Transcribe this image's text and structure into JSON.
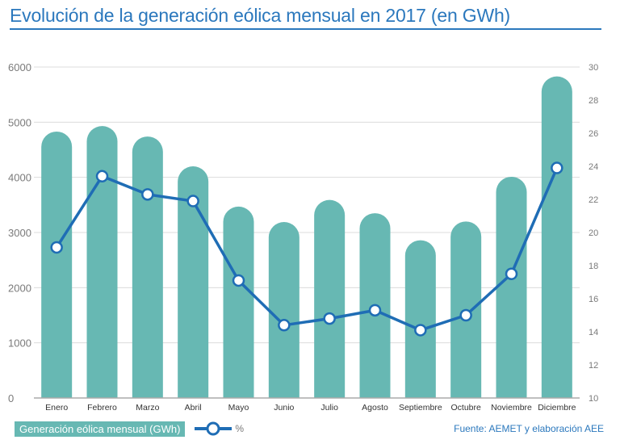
{
  "chart_data": {
    "type": "bar+line",
    "title": "Evolución de la generación eólica mensual en 2017 (en GWh)",
    "categories": [
      "Enero",
      "Febrero",
      "Marzo",
      "Abril",
      "Mayo",
      "Junio",
      "Julio",
      "Agosto",
      "Septiembre",
      "Octubre",
      "Noviembre",
      "Diciembre"
    ],
    "series": [
      {
        "name": "Generación eólica mensual (GWh)",
        "type": "bar",
        "axis": "left",
        "color": "#67b8b3",
        "values": [
          4830,
          4930,
          4740,
          4200,
          3470,
          3190,
          3590,
          3350,
          2860,
          3200,
          4010,
          5830
        ]
      },
      {
        "name": "%",
        "type": "line",
        "axis": "right",
        "color": "#1f6db5",
        "values": [
          19.1,
          23.4,
          22.3,
          21.9,
          17.1,
          14.4,
          14.8,
          15.3,
          14.1,
          15.0,
          17.5,
          23.9
        ]
      }
    ],
    "ylim_left": [
      0,
      6000
    ],
    "yticks_left": [
      0,
      1000,
      2000,
      3000,
      4000,
      5000,
      6000
    ],
    "ylim_right": [
      10,
      30
    ],
    "yticks_right": [
      10,
      12,
      14,
      16,
      18,
      20,
      22,
      24,
      26,
      28,
      30
    ],
    "grid": true,
    "legend_position": "bottom-left"
  },
  "source": "Fuente: AEMET y elaboración AEE"
}
